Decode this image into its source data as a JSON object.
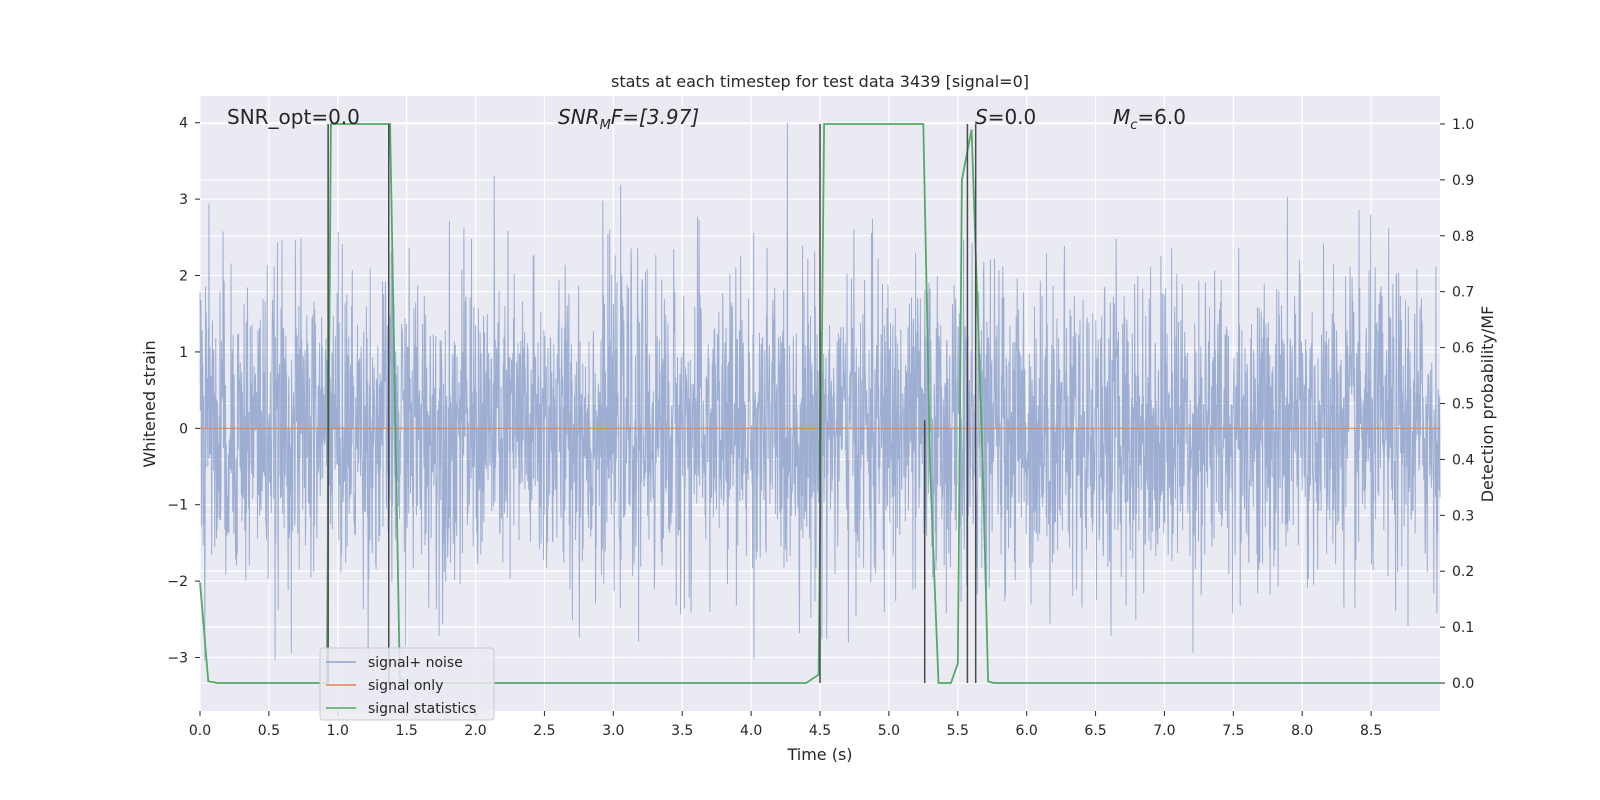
{
  "chart_data": {
    "type": "line",
    "title": "stats at each timestep for test data 3439 [signal=0]",
    "xlabel": "Time (s)",
    "ylabel": "Whitened strain",
    "y2label": "Detection probability/MF",
    "xlim": [
      0,
      9.0
    ],
    "ylim": [
      -3.7,
      4.35
    ],
    "y2lim": [
      -0.05,
      1.05
    ],
    "xticks": [
      0.0,
      0.5,
      1.0,
      1.5,
      2.0,
      2.5,
      3.0,
      3.5,
      4.0,
      4.5,
      5.0,
      5.5,
      6.0,
      6.5,
      7.0,
      7.5,
      8.0,
      8.5
    ],
    "xtick_labels": [
      "0.0",
      "0.5",
      "1.0",
      "1.5",
      "2.0",
      "2.5",
      "3.0",
      "3.5",
      "4.0",
      "4.5",
      "5.0",
      "5.5",
      "6.0",
      "6.5",
      "7.0",
      "7.5",
      "8.0",
      "8.5"
    ],
    "yticks": [
      -3,
      -2,
      -1,
      0,
      1,
      2,
      3,
      4
    ],
    "ytick_labels": [
      "−3",
      "−2",
      "−1",
      "0",
      "1",
      "2",
      "3",
      "4"
    ],
    "y2ticks": [
      0.0,
      0.1,
      0.2,
      0.3,
      0.4,
      0.5,
      0.6,
      0.7,
      0.8,
      0.9,
      1.0
    ],
    "y2tick_labels": [
      "0.0",
      "0.1",
      "0.2",
      "0.3",
      "0.4",
      "0.5",
      "0.6",
      "0.7",
      "0.8",
      "0.9",
      "1.0"
    ],
    "grid": true,
    "legend_position": "lower-left",
    "legend": [
      "signal+ noise",
      "signal only",
      "signal statistics"
    ],
    "annotations": {
      "snr_opt": "SNR_opt=0.0",
      "snr_mf_base": "SNR",
      "snr_mf_sub": "M",
      "snr_mf_rest": "F=[3.97]",
      "s_italic": "S",
      "s_rest": "=0.0",
      "mc_base": "M",
      "mc_sub": "c",
      "mc_rest": "=6.0"
    },
    "series": [
      {
        "name": "signal+ noise",
        "color": "#8fa3cc",
        "axis": "left",
        "description_stats": {
          "mean": 0.0,
          "std": 1.0,
          "min": -3.4,
          "max": 4.0,
          "duration_s": 9.0
        }
      },
      {
        "name": "signal only",
        "color": "#dd8452",
        "axis": "left",
        "x": [
          0.0,
          9.0
        ],
        "y": [
          0.0,
          0.0
        ]
      },
      {
        "name": "signal statistics",
        "color": "#55a868",
        "axis": "right",
        "x": [
          0.0,
          0.06,
          0.13,
          0.5,
          0.92,
          0.95,
          1.0,
          1.38,
          1.45,
          1.5,
          1.6,
          4.4,
          4.49,
          4.53,
          5.25,
          5.3,
          5.36,
          5.45,
          5.5,
          5.53,
          5.6,
          5.68,
          5.72,
          5.76,
          5.8,
          9.0
        ],
        "y": [
          0.18,
          0.003,
          0.0,
          0.0,
          0.0,
          1.0,
          1.0,
          1.0,
          0.01,
          0.0,
          0.0,
          0.0,
          0.015,
          1.0,
          1.0,
          0.38,
          0.0,
          0.0,
          0.035,
          0.9,
          0.99,
          0.4,
          0.003,
          0.0,
          0.0,
          0.0
        ]
      },
      {
        "name": "vertical markers",
        "color": "#4a4a4a",
        "axis": "right",
        "x": [
          0.93,
          1.37,
          4.5,
          5.26,
          5.57,
          5.63
        ],
        "y_top": [
          1.0,
          1.0,
          1.0,
          0.47,
          1.0,
          1.0
        ]
      }
    ]
  }
}
